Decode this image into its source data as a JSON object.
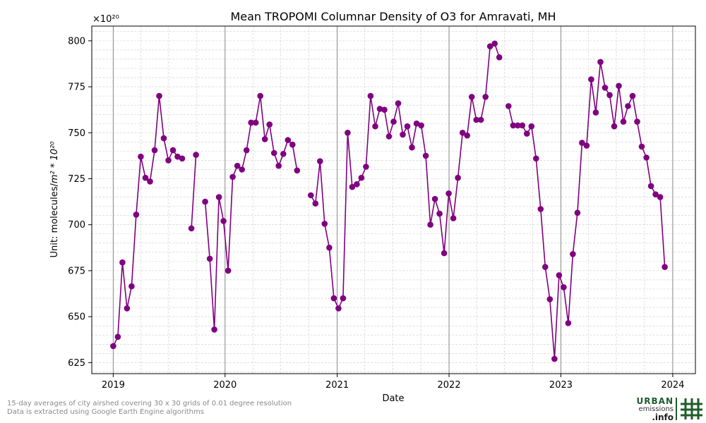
{
  "chart_data": {
    "type": "line",
    "title": "Mean TROPOMI Columnar Density of O3 for Amravati, MH",
    "xlabel": "Date",
    "ylabel_prefix": "Unit: molecules/",
    "ylabel_math": "m² * 10²⁰",
    "offset_text": "×10²⁰",
    "xlim": [
      "2018-10-23",
      "2024-03-15"
    ],
    "ylim": [
      619,
      808
    ],
    "xticks": [
      {
        "label": "2019",
        "date": "2019-01-01"
      },
      {
        "label": "2020",
        "date": "2020-01-01"
      },
      {
        "label": "2021",
        "date": "2021-01-01"
      },
      {
        "label": "2022",
        "date": "2022-01-01"
      },
      {
        "label": "2023",
        "date": "2023-01-01"
      },
      {
        "label": "2024",
        "date": "2024-01-01"
      }
    ],
    "yticks": [
      625,
      650,
      675,
      700,
      725,
      750,
      775,
      800
    ],
    "grid": true,
    "marker": "circle",
    "color": "#800080",
    "series": [
      {
        "points": [
          [
            "2019-01-01",
            634
          ],
          [
            "2019-01-16",
            639
          ],
          [
            "2019-01-31",
            679.5
          ],
          [
            "2019-02-15",
            654.5
          ],
          [
            "2019-03-02",
            666.5
          ],
          [
            "2019-03-17",
            705.5
          ],
          [
            "2019-04-01",
            737
          ],
          [
            "2019-04-16",
            725.5
          ],
          [
            "2019-05-01",
            723.5
          ],
          [
            "2019-05-16",
            740.5
          ],
          [
            "2019-05-31",
            770
          ],
          [
            "2019-06-15",
            747
          ],
          [
            "2019-06-30",
            735
          ],
          [
            "2019-07-15",
            740.5
          ],
          [
            "2019-07-30",
            737
          ],
          [
            "2019-08-14",
            736
          ],
          null,
          [
            "2019-09-13",
            698
          ],
          [
            "2019-09-28",
            738
          ],
          null,
          [
            "2019-10-28",
            712.5
          ],
          [
            "2019-11-12",
            681.5
          ],
          [
            "2019-11-27",
            643
          ],
          [
            "2019-12-12",
            715
          ],
          [
            "2019-12-27",
            702
          ],
          [
            "2020-01-11",
            675
          ],
          [
            "2020-01-26",
            726
          ],
          [
            "2020-02-10",
            732
          ],
          [
            "2020-02-25",
            730
          ],
          [
            "2020-03-11",
            740.5
          ],
          [
            "2020-03-26",
            755.5
          ],
          [
            "2020-04-10",
            755.5
          ],
          [
            "2020-04-25",
            770
          ],
          [
            "2020-05-10",
            746.5
          ],
          [
            "2020-05-25",
            754.5
          ],
          [
            "2020-06-09",
            739
          ],
          [
            "2020-06-24",
            732
          ],
          [
            "2020-07-09",
            738.5
          ],
          [
            "2020-07-24",
            746
          ],
          [
            "2020-08-08",
            743.5
          ],
          [
            "2020-08-23",
            729.5
          ],
          null,
          [
            "2020-10-07",
            716
          ],
          [
            "2020-10-22",
            711.5
          ],
          [
            "2020-11-06",
            734.5
          ],
          [
            "2020-11-21",
            700.5
          ],
          [
            "2020-12-06",
            687.5
          ],
          [
            "2020-12-21",
            660
          ],
          [
            "2021-01-05",
            654.5
          ],
          [
            "2021-01-20",
            660
          ],
          [
            "2021-02-04",
            750
          ],
          [
            "2021-02-19",
            720.5
          ],
          [
            "2021-03-06",
            722
          ],
          [
            "2021-03-21",
            725.5
          ],
          [
            "2021-04-05",
            731.5
          ],
          [
            "2021-04-20",
            770
          ],
          [
            "2021-05-05",
            753.5
          ],
          [
            "2021-05-20",
            763
          ],
          [
            "2021-06-04",
            762.5
          ],
          [
            "2021-06-19",
            748
          ],
          [
            "2021-07-04",
            756
          ],
          [
            "2021-07-19",
            766
          ],
          [
            "2021-08-03",
            749
          ],
          [
            "2021-08-18",
            753.5
          ],
          [
            "2021-09-02",
            742
          ],
          [
            "2021-09-17",
            755
          ],
          [
            "2021-10-02",
            754
          ],
          [
            "2021-10-17",
            737.5
          ],
          [
            "2021-11-01",
            700
          ],
          [
            "2021-11-16",
            714
          ],
          [
            "2021-12-01",
            706
          ],
          [
            "2021-12-16",
            684.5
          ],
          [
            "2021-12-31",
            717
          ],
          [
            "2022-01-15",
            703.5
          ],
          [
            "2022-01-30",
            725.5
          ],
          [
            "2022-02-14",
            750
          ],
          [
            "2022-03-01",
            748.5
          ],
          [
            "2022-03-16",
            769.5
          ],
          [
            "2022-03-31",
            757
          ],
          [
            "2022-04-15",
            757
          ],
          [
            "2022-04-30",
            769.5
          ],
          [
            "2022-05-15",
            797
          ],
          [
            "2022-05-30",
            798.5
          ],
          [
            "2022-06-14",
            791
          ],
          null,
          [
            "2022-07-14",
            764.5
          ],
          [
            "2022-07-29",
            754
          ],
          [
            "2022-08-13",
            754
          ],
          [
            "2022-08-28",
            754
          ],
          [
            "2022-09-12",
            749.5
          ],
          [
            "2022-09-27",
            753.5
          ],
          [
            "2022-10-12",
            736
          ],
          [
            "2022-10-27",
            708.5
          ],
          [
            "2022-11-11",
            677
          ],
          [
            "2022-11-26",
            659.5
          ],
          [
            "2022-12-11",
            627
          ],
          [
            "2022-12-26",
            672.5
          ],
          [
            "2023-01-10",
            666
          ],
          [
            "2023-01-25",
            646.5
          ],
          [
            "2023-02-09",
            684
          ],
          [
            "2023-02-24",
            706.5
          ],
          [
            "2023-03-11",
            744.5
          ],
          [
            "2023-03-26",
            743
          ],
          [
            "2023-04-10",
            779
          ],
          [
            "2023-04-25",
            761
          ],
          [
            "2023-05-10",
            788.5
          ],
          [
            "2023-05-25",
            774.5
          ],
          [
            "2023-06-09",
            770.5
          ],
          [
            "2023-06-24",
            753.5
          ],
          [
            "2023-07-09",
            775.5
          ],
          [
            "2023-07-24",
            756
          ],
          [
            "2023-08-08",
            764.5
          ],
          [
            "2023-08-23",
            770
          ],
          [
            "2023-09-07",
            756
          ],
          [
            "2023-09-22",
            742.5
          ],
          [
            "2023-10-07",
            736.5
          ],
          [
            "2023-10-22",
            721
          ],
          [
            "2023-11-06",
            716.5
          ],
          [
            "2023-11-21",
            715
          ],
          [
            "2023-12-06",
            677
          ]
        ]
      }
    ]
  },
  "footnote": {
    "line1": "15-day averages of city airshed covering 30 x 30 grids of 0.01 degree resolution",
    "line2": "Data is extracted using Google Earth Engine algorithms"
  },
  "logo": {
    "line1": "URBAN",
    "line2": "emissions",
    "line3": ".info",
    "icon": "hash-grid-icon",
    "color": "#1f5c2a"
  }
}
